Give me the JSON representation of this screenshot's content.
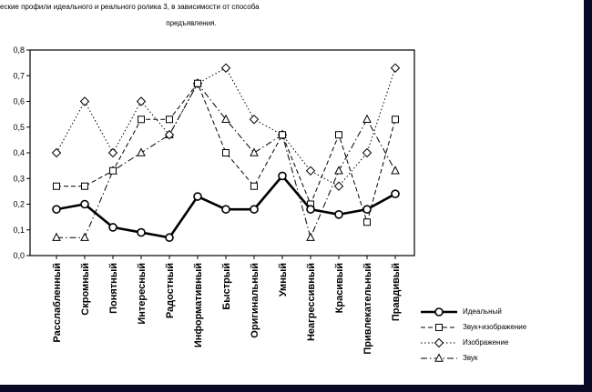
{
  "chart_data": {
    "type": "line",
    "title_line1": "еские профили идеального и реального ролика 3, в зависимости от способа",
    "title_line2": "предъявления.",
    "categories": [
      "Расслабленный",
      "Скромный",
      "Понятный",
      "Интересный",
      "Радостный",
      "Информативный",
      "Быстрый",
      "Оригинальный",
      "Умный",
      "Неагрессивный",
      "Красивый",
      "Привлекательный",
      "Правдивый"
    ],
    "ylim": [
      0,
      0.8
    ],
    "ytick_values": [
      0,
      0.1,
      0.2,
      0.3,
      0.4,
      0.5,
      0.6,
      0.7,
      0.8
    ],
    "ytick_labels": [
      "0,0",
      "0,1",
      "0,2",
      "0,3",
      "0,4",
      "0,5",
      "0,6",
      "0,7",
      "0,8"
    ],
    "grid": false,
    "legend_position": "right-bottom",
    "series": [
      {
        "name": "Идеальный",
        "marker": "circle",
        "line": "solid",
        "thick": true,
        "values": [
          0.18,
          0.2,
          0.11,
          0.09,
          0.07,
          0.23,
          0.18,
          0.18,
          0.31,
          0.18,
          0.16,
          0.18,
          0.24
        ]
      },
      {
        "name": "Звук+изображение",
        "marker": "square",
        "line": "dashed",
        "thick": false,
        "values": [
          0.27,
          0.27,
          0.33,
          0.53,
          0.53,
          0.67,
          0.4,
          0.27,
          0.47,
          0.2,
          0.47,
          0.13,
          0.53
        ]
      },
      {
        "name": "Изображение",
        "marker": "diamond",
        "line": "dotted",
        "thick": false,
        "values": [
          0.4,
          0.6,
          0.4,
          0.6,
          0.47,
          0.67,
          0.73,
          0.53,
          0.47,
          0.33,
          0.27,
          0.4,
          0.73
        ]
      },
      {
        "name": "Звук",
        "marker": "triangle",
        "line": "dashdot",
        "thick": false,
        "values": [
          0.07,
          0.07,
          0.33,
          0.4,
          0.47,
          0.67,
          0.53,
          0.4,
          0.47,
          0.07,
          0.33,
          0.53,
          0.33
        ]
      }
    ]
  }
}
